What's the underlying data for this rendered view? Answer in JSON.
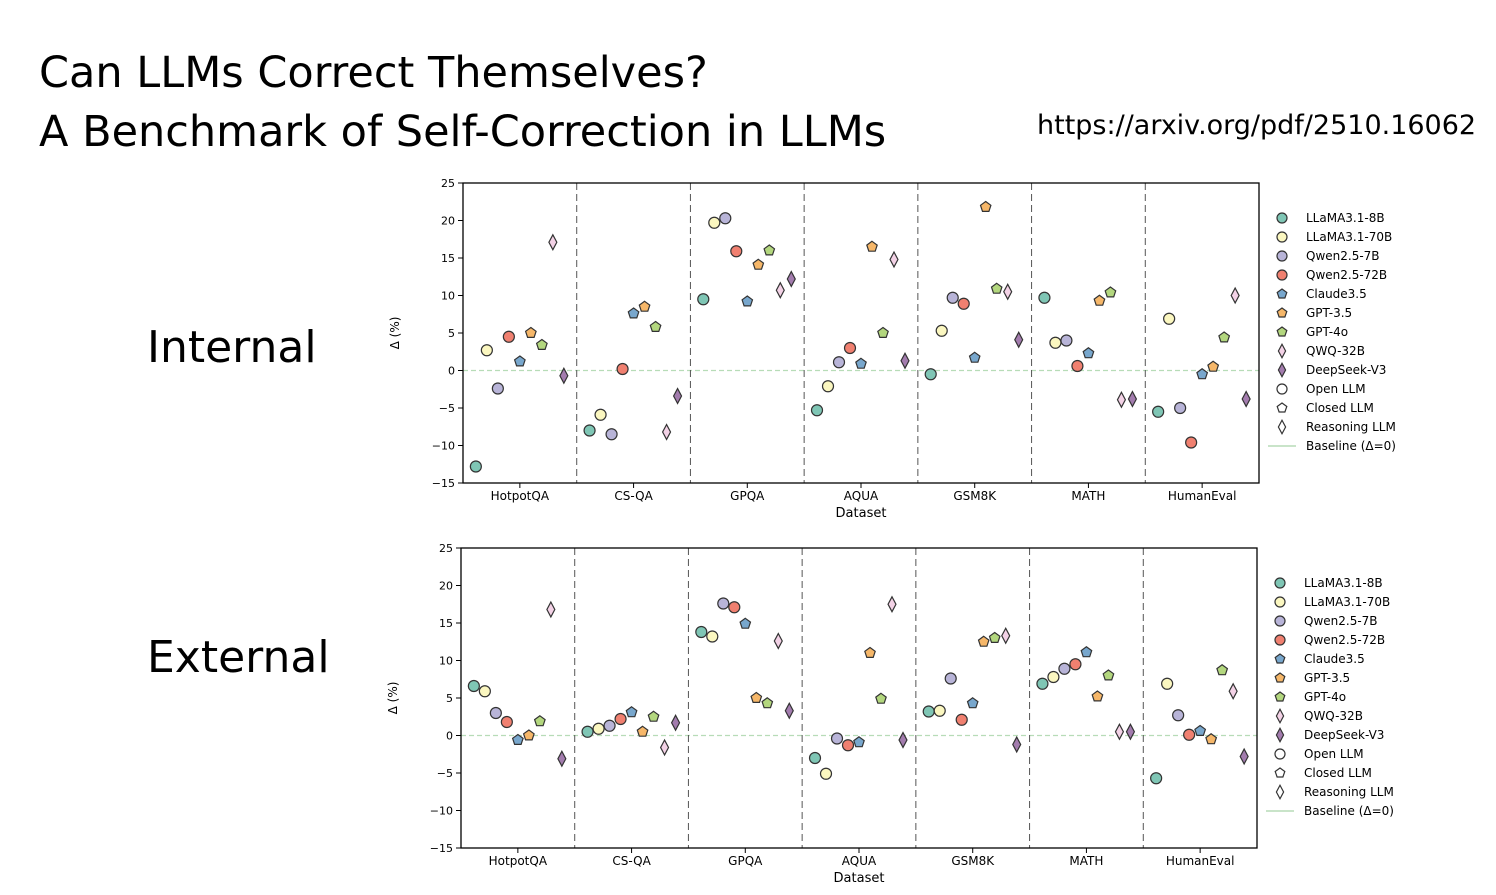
{
  "slide": {
    "title_line1": "Can LLMs Correct Themselves?",
    "title_line2": "A Benchmark of Self-Correction in LLMs",
    "url": "https://arxiv.org/pdf/2510.16062",
    "row_labels": [
      "Internal",
      "External"
    ]
  },
  "chart_data": [
    {
      "type": "scatter",
      "panel": "Internal",
      "title": "",
      "xlabel": "Dataset",
      "ylabel": "Δ (%)",
      "ylim": [
        -15,
        25
      ],
      "yticks": [
        "25",
        "20",
        "15",
        "10",
        "5",
        "0",
        "−5",
        "−10",
        "−15"
      ],
      "categories": [
        "HotpotQA",
        "CS-QA",
        "GPQA",
        "AQUA",
        "GSM8K",
        "MATH",
        "HumanEval"
      ],
      "baseline": 0,
      "legend_position": "right",
      "series": [
        {
          "name": "LLaMA3.1-8B",
          "marker": "circle",
          "color": "#7fc6b5",
          "values": [
            -12.8,
            -8,
            9.5,
            -5.3,
            -0.5,
            9.7,
            -5.5
          ]
        },
        {
          "name": "LLaMA3.1-70B",
          "marker": "circle",
          "color": "#fbf7c0",
          "values": [
            2.7,
            -5.9,
            19.7,
            -2.1,
            5.3,
            3.7,
            6.9
          ]
        },
        {
          "name": "Qwen2.5-7B",
          "marker": "circle",
          "color": "#b8b4d8",
          "values": [
            -2.4,
            -8.5,
            20.3,
            1.1,
            9.7,
            4,
            -5
          ]
        },
        {
          "name": "Qwen2.5-72B",
          "marker": "circle",
          "color": "#f08070",
          "values": [
            4.5,
            0.2,
            15.9,
            3,
            8.9,
            0.6,
            -9.6
          ]
        },
        {
          "name": "Claude3.5",
          "marker": "pentagon",
          "color": "#78a7cd",
          "values": [
            1.2,
            7.6,
            9.2,
            0.9,
            1.7,
            2.3,
            -0.5
          ]
        },
        {
          "name": "GPT-3.5",
          "marker": "pentagon",
          "color": "#f6b769",
          "values": [
            5,
            8.5,
            14.1,
            16.5,
            21.8,
            9.3,
            0.5
          ]
        },
        {
          "name": "GPT-4o",
          "marker": "pentagon",
          "color": "#b3d77e",
          "values": [
            3.4,
            5.8,
            16,
            5,
            10.9,
            10.4,
            4.4
          ]
        },
        {
          "name": "QWQ-32B",
          "marker": "diamond",
          "color": "#f3d2e6",
          "values": [
            17.1,
            -8.2,
            10.7,
            14.8,
            10.5,
            -3.9,
            10
          ]
        },
        {
          "name": "DeepSeek-V3",
          "marker": "diamond",
          "color": "#a37cae",
          "values": [
            -0.7,
            -3.4,
            12.2,
            1.3,
            4.1,
            -3.8,
            -3.8
          ]
        }
      ],
      "legend": [
        {
          "label": "LLaMA3.1-8B",
          "marker": "circle",
          "color": "#7fc6b5"
        },
        {
          "label": "LLaMA3.1-70B",
          "marker": "circle",
          "color": "#fbf7c0"
        },
        {
          "label": "Qwen2.5-7B",
          "marker": "circle",
          "color": "#b8b4d8"
        },
        {
          "label": "Qwen2.5-72B",
          "marker": "circle",
          "color": "#f08070"
        },
        {
          "label": "Claude3.5",
          "marker": "pentagon",
          "color": "#78a7cd"
        },
        {
          "label": "GPT-3.5",
          "marker": "pentagon",
          "color": "#f6b769"
        },
        {
          "label": "GPT-4o",
          "marker": "pentagon",
          "color": "#b3d77e"
        },
        {
          "label": "QWQ-32B",
          "marker": "diamond",
          "color": "#f3d2e6"
        },
        {
          "label": "DeepSeek-V3",
          "marker": "diamond",
          "color": "#a37cae"
        },
        {
          "label": "Open LLM",
          "marker": "circle",
          "color": "#ffffff"
        },
        {
          "label": "Closed LLM",
          "marker": "pentagon",
          "color": "#ffffff"
        },
        {
          "label": "Reasoning LLM",
          "marker": "diamond",
          "color": "#ffffff"
        },
        {
          "label": "Baseline (Δ=0)",
          "marker": "line",
          "color": "#b7dcb7"
        }
      ]
    },
    {
      "type": "scatter",
      "panel": "External",
      "title": "",
      "xlabel": "Dataset",
      "ylabel": "Δ (%)",
      "ylim": [
        -15,
        25
      ],
      "yticks": [
        "25",
        "20",
        "15",
        "10",
        "5",
        "0",
        "−5",
        "−10",
        "−15"
      ],
      "categories": [
        "HotpotQA",
        "CS-QA",
        "GPQA",
        "AQUA",
        "GSM8K",
        "MATH",
        "HumanEval"
      ],
      "baseline": 0,
      "legend_position": "right",
      "series": [
        {
          "name": "LLaMA3.1-8B",
          "marker": "circle",
          "color": "#7fc6b5",
          "values": [
            6.6,
            0.5,
            13.8,
            -3,
            3.2,
            6.9,
            -5.7
          ]
        },
        {
          "name": "LLaMA3.1-70B",
          "marker": "circle",
          "color": "#fbf7c0",
          "values": [
            5.9,
            0.9,
            13.2,
            -5.1,
            3.3,
            7.8,
            6.9
          ]
        },
        {
          "name": "Qwen2.5-7B",
          "marker": "circle",
          "color": "#b8b4d8",
          "values": [
            3,
            1.3,
            17.6,
            -0.4,
            7.6,
            8.9,
            2.7
          ]
        },
        {
          "name": "Qwen2.5-72B",
          "marker": "circle",
          "color": "#f08070",
          "values": [
            1.8,
            2.2,
            17.1,
            -1.3,
            2.1,
            9.5,
            0.1
          ]
        },
        {
          "name": "Claude3.5",
          "marker": "pentagon",
          "color": "#78a7cd",
          "values": [
            -0.6,
            3.1,
            14.9,
            -0.9,
            4.3,
            11.1,
            0.6
          ]
        },
        {
          "name": "GPT-3.5",
          "marker": "pentagon",
          "color": "#f6b769",
          "values": [
            0,
            0.5,
            5,
            11,
            12.5,
            5.2,
            -0.5
          ]
        },
        {
          "name": "GPT-4o",
          "marker": "pentagon",
          "color": "#b3d77e",
          "values": [
            1.9,
            2.5,
            4.3,
            4.9,
            13,
            8,
            8.7
          ]
        },
        {
          "name": "QWQ-32B",
          "marker": "diamond",
          "color": "#f3d2e6",
          "values": [
            16.8,
            -1.6,
            12.6,
            17.5,
            13.3,
            0.5,
            5.9
          ]
        },
        {
          "name": "DeepSeek-V3",
          "marker": "diamond",
          "color": "#a37cae",
          "values": [
            -3.1,
            1.7,
            3.3,
            -0.6,
            -1.2,
            0.5,
            -2.8
          ]
        }
      ],
      "legend": [
        {
          "label": "LLaMA3.1-8B",
          "marker": "circle",
          "color": "#7fc6b5"
        },
        {
          "label": "LLaMA3.1-70B",
          "marker": "circle",
          "color": "#fbf7c0"
        },
        {
          "label": "Qwen2.5-7B",
          "marker": "circle",
          "color": "#b8b4d8"
        },
        {
          "label": "Qwen2.5-72B",
          "marker": "circle",
          "color": "#f08070"
        },
        {
          "label": "Claude3.5",
          "marker": "pentagon",
          "color": "#78a7cd"
        },
        {
          "label": "GPT-3.5",
          "marker": "pentagon",
          "color": "#f6b769"
        },
        {
          "label": "GPT-4o",
          "marker": "pentagon",
          "color": "#b3d77e"
        },
        {
          "label": "QWQ-32B",
          "marker": "diamond",
          "color": "#f3d2e6"
        },
        {
          "label": "DeepSeek-V3",
          "marker": "diamond",
          "color": "#a37cae"
        },
        {
          "label": "Open LLM",
          "marker": "circle",
          "color": "#ffffff"
        },
        {
          "label": "Closed LLM",
          "marker": "pentagon",
          "color": "#ffffff"
        },
        {
          "label": "Reasoning LLM",
          "marker": "diamond",
          "color": "#ffffff"
        },
        {
          "label": "Baseline (Δ=0)",
          "marker": "line",
          "color": "#b7dcb7"
        }
      ]
    }
  ]
}
